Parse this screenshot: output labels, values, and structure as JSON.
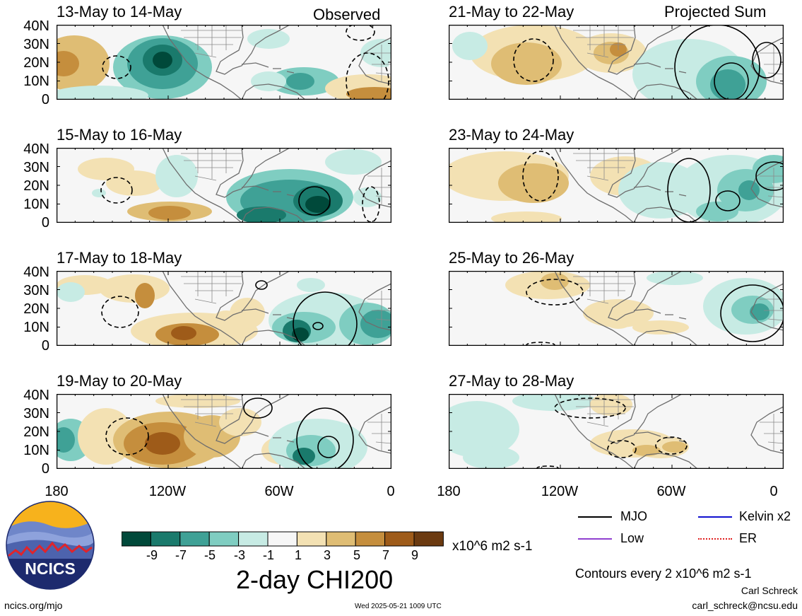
{
  "header": {
    "observed": "Observed",
    "projected": "Projected Sum"
  },
  "left_panels": [
    {
      "title": "13-May to 14-May"
    },
    {
      "title": "15-May to 16-May"
    },
    {
      "title": "17-May to 18-May"
    },
    {
      "title": "19-May to 20-May"
    }
  ],
  "right_panels": [
    {
      "title": "21-May to 22-May"
    },
    {
      "title": "23-May to 24-May"
    },
    {
      "title": "25-May to 26-May"
    },
    {
      "title": "27-May to 28-May"
    }
  ],
  "lat_ticks": [
    "40N",
    "30N",
    "20N",
    "10N",
    "0"
  ],
  "lon_ticks": [
    "180",
    "120W",
    "60W",
    "0"
  ],
  "colorbar": {
    "colors": [
      "#00493a",
      "#1a7a6c",
      "#3fa196",
      "#7fcdc1",
      "#c7ebe4",
      "#f6f6f6",
      "#f3e1b3",
      "#dfbd74",
      "#c58e3d",
      "#9e5b19",
      "#6b3a10"
    ],
    "labels": [
      "-9",
      "-7",
      "-5",
      "-3",
      "-1",
      "1",
      "3",
      "5",
      "7",
      "9"
    ],
    "units": "x10^6 m2 s-1",
    "title": "2-day CHI200"
  },
  "legend": [
    {
      "name": "MJO",
      "color": "#000000"
    },
    {
      "name": "Kelvin x2",
      "color": "#1010d0"
    },
    {
      "name": "Low",
      "color": "#9040d0"
    },
    {
      "name": "ER",
      "color": "#e02020"
    }
  ],
  "contour_note": "Contours every 2 x10^6 m2 s-1",
  "logo_text": "NCICS",
  "footer": {
    "url": "ncics.org/mjo",
    "timestamp": "Wed 2025-05-21 1009 UTC",
    "author": "Carl Schreck",
    "email": "carl_schreck@ncsu.edu"
  }
}
